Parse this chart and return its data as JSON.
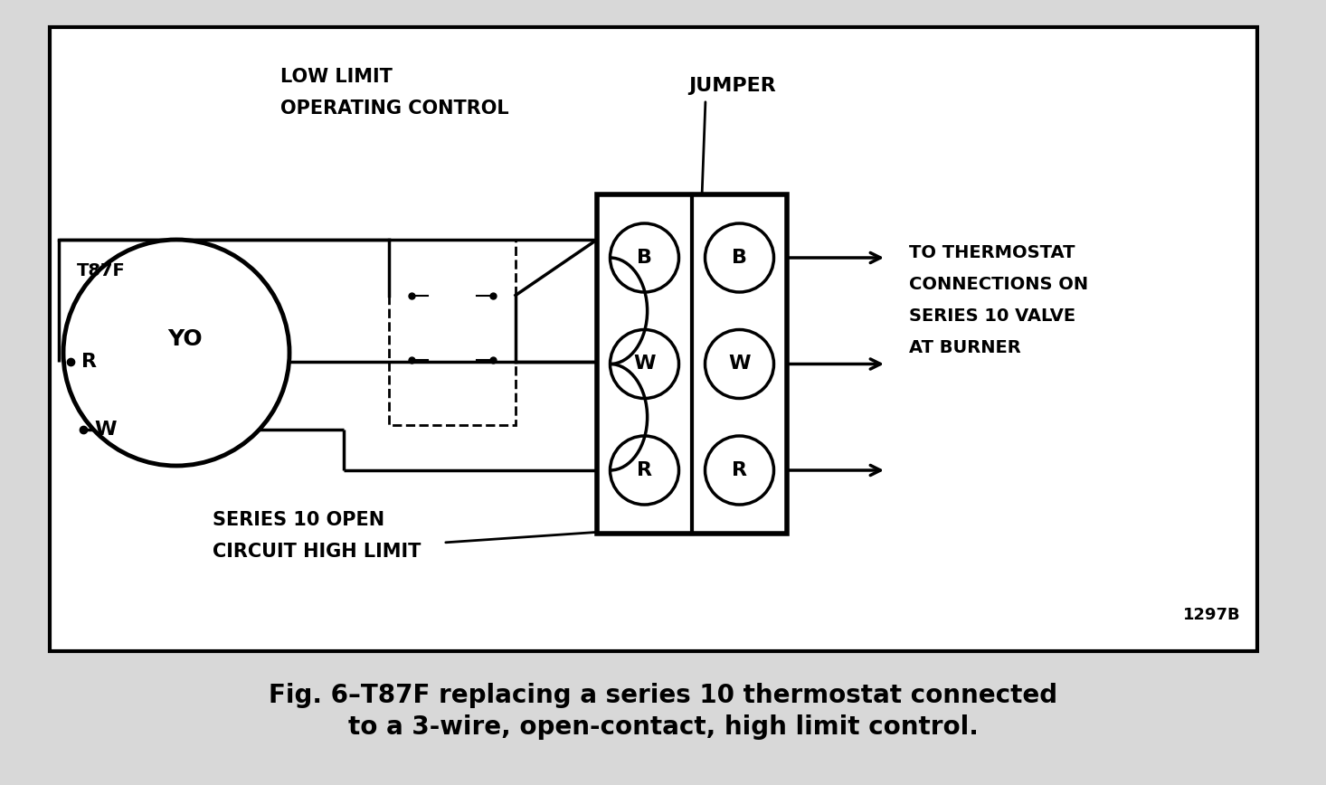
{
  "bg_color": "#d8d8d8",
  "diagram_bg": "#ffffff",
  "line_color": "#000000",
  "title_line1": "Fig. 6–T87F replacing a series 10 thermostat connected",
  "title_line2": "to a 3-wire, open-contact, high limit control.",
  "code": "1297B",
  "label_low_limit_1": "LOW LIMIT",
  "label_low_limit_2": "OPERATING CONTROL",
  "label_jumper": "JUMPER",
  "label_t87f": "T87F",
  "label_yo": "YO",
  "label_r": "R",
  "label_w": "W",
  "label_series10_1": "SERIES 10 OPEN",
  "label_series10_2": "CIRCUIT HIGH LIMIT",
  "label_therm_1": "TO THERMOSTAT",
  "label_therm_2": "CONNECTIONS ON",
  "label_therm_3": "SERIES 10 VALVE",
  "label_therm_4": "AT BURNER",
  "terminals": [
    "B",
    "W",
    "R"
  ]
}
